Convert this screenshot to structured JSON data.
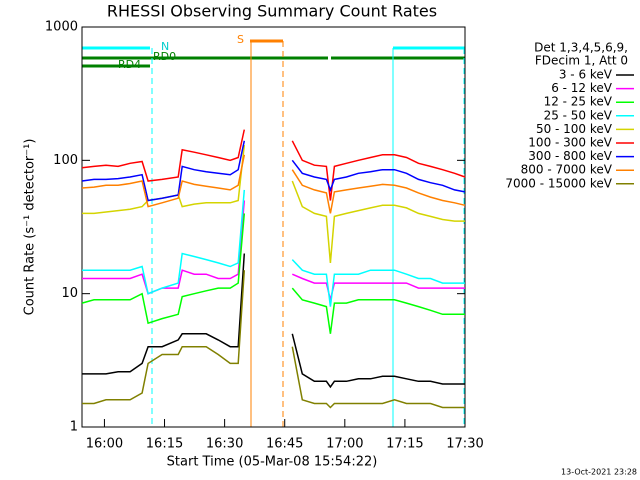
{
  "chart_data": {
    "type": "line",
    "title": "RHESSI Observing Summary Count Rates",
    "x_label": "Start Time (05-Mar-08 15:54:22)",
    "y_label": "Count Rate (s⁻¹ detector⁻¹)",
    "legend_title": [
      "Det 1,3,4,5,6,9,",
      "FDecim 1, Att 0"
    ],
    "annotations": [
      "N",
      "RD0",
      "RD4",
      "S"
    ],
    "footer": "13-Oct-2021 23:28",
    "log_y": true,
    "xlim": [
      0,
      95.6
    ],
    "ylim": [
      1,
      1000
    ],
    "yticks": [
      1,
      10,
      100,
      1000
    ],
    "xticks": [
      {
        "value": 5.6,
        "label": "16:00"
      },
      {
        "value": 20.6,
        "label": "16:15"
      },
      {
        "value": 35.6,
        "label": "16:30"
      },
      {
        "value": 50.6,
        "label": "16:45"
      },
      {
        "value": 65.6,
        "label": "17:00"
      },
      {
        "value": 80.6,
        "label": "17:15"
      },
      {
        "value": 95.6,
        "label": "17:30"
      }
    ],
    "x": [
      0,
      3,
      6,
      9,
      12,
      15,
      16.5,
      20,
      24,
      25,
      28,
      31,
      34,
      37,
      39,
      40.5,
      45,
      52.5,
      55,
      58,
      61,
      62,
      63,
      66,
      69,
      72,
      75,
      78,
      81,
      84,
      87,
      90,
      93,
      95.6
    ],
    "series": [
      {
        "name": "3 - 6 keV",
        "color": "#000000",
        "values": [
          2.5,
          2.5,
          2.5,
          2.6,
          2.6,
          3,
          4,
          4,
          4.5,
          5,
          5,
          5,
          4.5,
          4,
          4,
          20,
          null,
          5,
          2.5,
          2.2,
          2.2,
          2,
          2.2,
          2.2,
          2.3,
          2.3,
          2.4,
          2.4,
          2.3,
          2.2,
          2.2,
          2.1,
          2.1,
          2.1
        ]
      },
      {
        "name": "6 - 12 keV",
        "color": "#ff00ff",
        "values": [
          13,
          13,
          13,
          13,
          13,
          14,
          10,
          11,
          11,
          15,
          14,
          14,
          13,
          13,
          14,
          50,
          null,
          14,
          13,
          12,
          12,
          9,
          12,
          12,
          12,
          12,
          12,
          12,
          12,
          11,
          11,
          11,
          11,
          11
        ]
      },
      {
        "name": "12 - 25 keV",
        "color": "#00ff00",
        "values": [
          8.5,
          9,
          9,
          9,
          9,
          10,
          6,
          6.5,
          7,
          9.5,
          10,
          10.5,
          11,
          11,
          12,
          40,
          null,
          11,
          9,
          8.5,
          8,
          5,
          8.5,
          8.5,
          9,
          9,
          9,
          9,
          8.5,
          8,
          7.5,
          7,
          7,
          7
        ]
      },
      {
        "name": "25 - 50 keV",
        "color": "#00ffff",
        "values": [
          15,
          15,
          15,
          15,
          15,
          16,
          10,
          11,
          12,
          20,
          19,
          18,
          17,
          16,
          17,
          60,
          null,
          18,
          15,
          14,
          14,
          8,
          14,
          14,
          14,
          15,
          15,
          15,
          14,
          13,
          13,
          12,
          12,
          12
        ]
      },
      {
        "name": "50 - 100 keV",
        "color": "#d4d400",
        "values": [
          40,
          40,
          41,
          42,
          43,
          45,
          50,
          52,
          55,
          45,
          47,
          48,
          48,
          48,
          50,
          130,
          null,
          70,
          45,
          40,
          38,
          17,
          38,
          40,
          42,
          44,
          46,
          46,
          44,
          40,
          38,
          36,
          35,
          35
        ]
      },
      {
        "name": "100 - 300 keV",
        "color": "#ff0000",
        "values": [
          88,
          90,
          92,
          90,
          95,
          98,
          70,
          72,
          75,
          120,
          115,
          110,
          105,
          100,
          105,
          170,
          null,
          140,
          100,
          92,
          90,
          50,
          90,
          95,
          100,
          105,
          110,
          110,
          105,
          95,
          90,
          85,
          80,
          75
        ]
      },
      {
        "name": "300 - 800 keV",
        "color": "#0000ff",
        "values": [
          70,
          72,
          72,
          73,
          75,
          78,
          50,
          52,
          55,
          90,
          85,
          82,
          80,
          78,
          85,
          140,
          null,
          100,
          80,
          75,
          72,
          60,
          72,
          75,
          80,
          82,
          85,
          85,
          80,
          72,
          68,
          65,
          60,
          58
        ]
      },
      {
        "name": "800 - 7000 keV",
        "color": "#ff8000",
        "values": [
          62,
          63,
          65,
          65,
          67,
          70,
          45,
          48,
          52,
          70,
          66,
          64,
          62,
          60,
          65,
          110,
          null,
          85,
          65,
          60,
          57,
          40,
          58,
          60,
          62,
          64,
          66,
          65,
          62,
          57,
          53,
          50,
          48,
          46
        ]
      },
      {
        "name": "7000 - 15000 keV",
        "color": "#808000",
        "values": [
          1.5,
          1.5,
          1.6,
          1.6,
          1.6,
          1.8,
          3,
          3.5,
          3.5,
          4,
          4,
          4,
          3.5,
          3,
          3,
          15,
          null,
          4,
          1.6,
          1.5,
          1.5,
          1.4,
          1.5,
          1.5,
          1.5,
          1.5,
          1.5,
          1.6,
          1.5,
          1.5,
          1.5,
          1.4,
          1.4,
          1.4
        ]
      }
    ]
  }
}
